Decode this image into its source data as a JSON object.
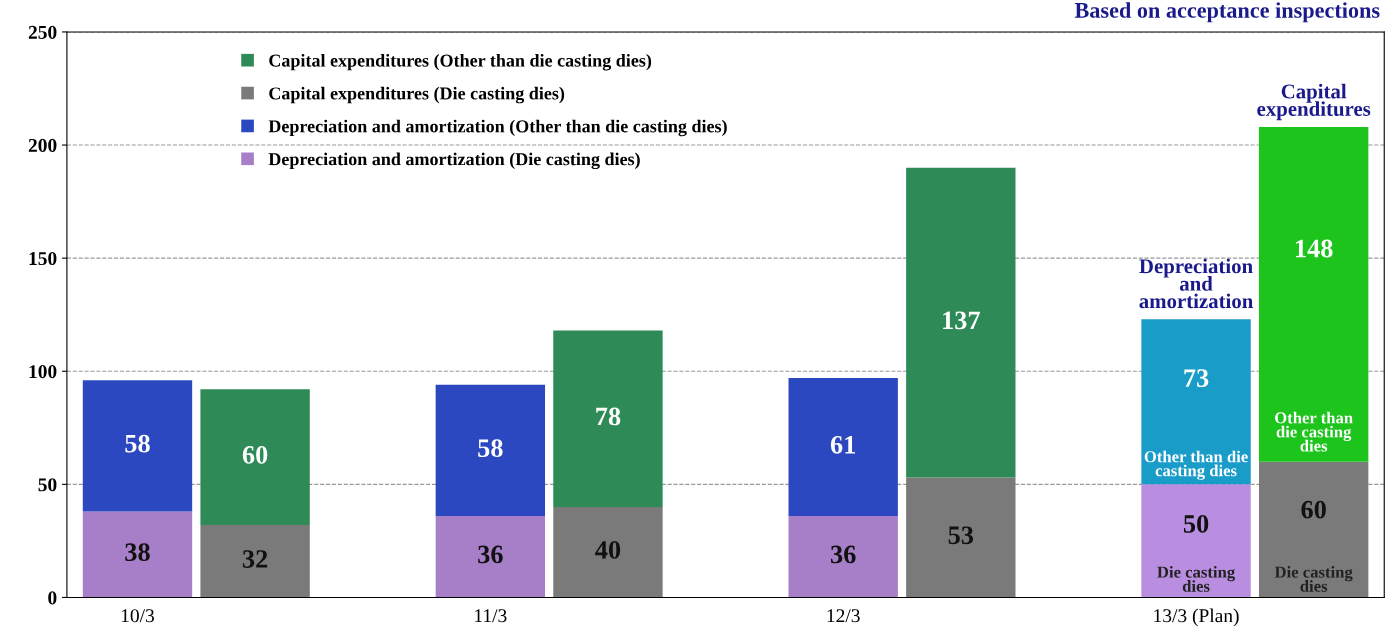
{
  "chart_data": {
    "type": "bar",
    "title": "Based on acceptance inspections",
    "categories": [
      "10/3",
      null,
      null,
      "11/3",
      null,
      null,
      "12/3",
      null,
      null,
      "13/3 (Plan)",
      null
    ],
    "stacked": true,
    "series": [
      {
        "name": "Depreciation and amortization (Die casting dies)",
        "color": "#a77fc9",
        "colors": [
          "#a77fc9",
          "#a77fc9",
          "#a77fc9",
          "#a77fc9",
          "#a77fc9",
          "#a77fc9",
          "#a77fc9",
          "#a77fc9",
          "#a77fc9",
          "#b98ee0",
          "#b98ee0"
        ],
        "values": [
          38,
          null,
          null,
          36,
          null,
          null,
          36,
          null,
          null,
          50,
          null
        ]
      },
      {
        "name": "Depreciation and amortization (Other than die casting dies)",
        "color": "#2c48c0",
        "colors": [
          "#2c48c0",
          "#2c48c0",
          "#2c48c0",
          "#2c48c0",
          "#2c48c0",
          "#2c48c0",
          "#2c48c0",
          "#2c48c0",
          "#2c48c0",
          "#1a9cc8",
          "#1a9cc8"
        ],
        "values": [
          58,
          null,
          null,
          58,
          null,
          null,
          61,
          null,
          null,
          73,
          null
        ]
      },
      {
        "name": "Capital expenditures (Die casting dies)",
        "color": "#7a7a7a",
        "colors": [
          "#7a7a7a",
          "#7a7a7a",
          "#7a7a7a",
          "#7a7a7a",
          "#7a7a7a",
          "#7a7a7a",
          "#7a7a7a",
          "#7a7a7a",
          "#7a7a7a",
          "#7a7a7a",
          "#7a7a7a"
        ],
        "values": [
          null,
          32,
          null,
          null,
          40,
          null,
          null,
          53,
          null,
          null,
          60
        ]
      },
      {
        "name": "Capital expenditures (Other than die casting dies)",
        "color": "#2e8b57",
        "colors": [
          "#2e8b57",
          "#2e8b57",
          "#2e8b57",
          "#2e8b57",
          "#2e8b57",
          "#2e8b57",
          "#2e8b57",
          "#2e8b57",
          "#2e8b57",
          "#1cc41c",
          "#1cc41c"
        ],
        "values": [
          null,
          60,
          null,
          null,
          78,
          null,
          null,
          137,
          null,
          null,
          148
        ]
      }
    ],
    "data_labels": true,
    "ylim": [
      0,
      250
    ],
    "yticks": [
      0,
      50,
      100,
      150,
      200,
      250
    ],
    "grid": "y",
    "legend": "top left",
    "annotations": [
      "Depreciation and amortization",
      "Capital expenditures",
      "Other than die casting dies",
      "Other than die casting dies",
      "Die casting dies",
      "Die casting dies"
    ]
  }
}
